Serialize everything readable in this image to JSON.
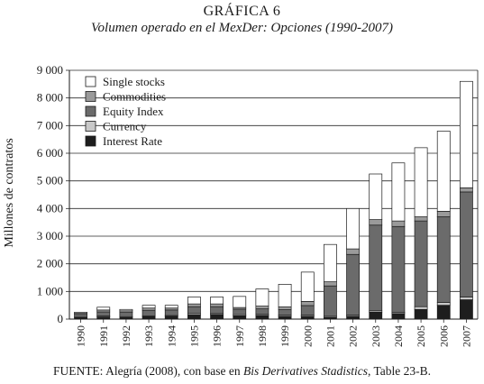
{
  "header": {
    "title": "GRÁFICA 6",
    "subtitle": "Volumen operado en el MexDer: Opciones (1990-2007)"
  },
  "source": {
    "prefix": "FUENTE: Alegría (2008), con base en ",
    "italic": "Bis Derivatives Stadistics",
    "suffix": ", Table 23-B."
  },
  "colors": {
    "single_stocks": "#ffffff",
    "commodities": "#9a9a9a",
    "equity_index": "#6b6b6b",
    "currency": "#c8c8c8",
    "interest_rate": "#1e1e1e"
  },
  "chart_data": {
    "type": "bar",
    "stacked": true,
    "ylabel": "Millones de contratos",
    "ylim": [
      0,
      9000
    ],
    "yticks": [
      0,
      1000,
      2000,
      3000,
      4000,
      5000,
      6000,
      7000,
      8000,
      9000
    ],
    "ytick_labels": [
      "0",
      "1 000",
      "2 000",
      "3 000",
      "4 000",
      "5 000",
      "6 000",
      "7 000",
      "8 000",
      "9 000"
    ],
    "grid": true,
    "legend_position": "top-left",
    "categories": [
      "1990",
      "1991",
      "1992",
      "1993",
      "1994",
      "1995",
      "1996",
      "1997",
      "1998",
      "1999",
      "2000",
      "2001",
      "2002",
      "2003",
      "2004",
      "2005",
      "2006",
      "2007"
    ],
    "series": [
      {
        "name": "Interest Rate",
        "color_key": "interest_rate",
        "values": [
          50,
          80,
          60,
          90,
          100,
          150,
          160,
          120,
          130,
          100,
          100,
          60,
          100,
          250,
          200,
          350,
          500,
          700
        ]
      },
      {
        "name": "Currency",
        "color_key": "currency",
        "values": [
          20,
          30,
          30,
          30,
          30,
          50,
          40,
          40,
          40,
          40,
          40,
          40,
          40,
          50,
          50,
          100,
          100,
          100
        ]
      },
      {
        "name": "Equity Index",
        "color_key": "equity_index",
        "values": [
          100,
          150,
          150,
          200,
          200,
          250,
          250,
          200,
          200,
          200,
          350,
          1100,
          2200,
          3100,
          3100,
          3100,
          3100,
          3800
        ]
      },
      {
        "name": "Commodities",
        "color_key": "commodities",
        "values": [
          40,
          70,
          60,
          80,
          70,
          100,
          100,
          60,
          100,
          100,
          150,
          150,
          200,
          200,
          200,
          150,
          200,
          150
        ]
      },
      {
        "name": "Single stocks",
        "color_key": "single_stocks",
        "values": [
          40,
          100,
          50,
          100,
          100,
          250,
          250,
          400,
          620,
          820,
          1060,
          1350,
          1460,
          1650,
          2100,
          2500,
          2900,
          3850
        ]
      }
    ]
  }
}
